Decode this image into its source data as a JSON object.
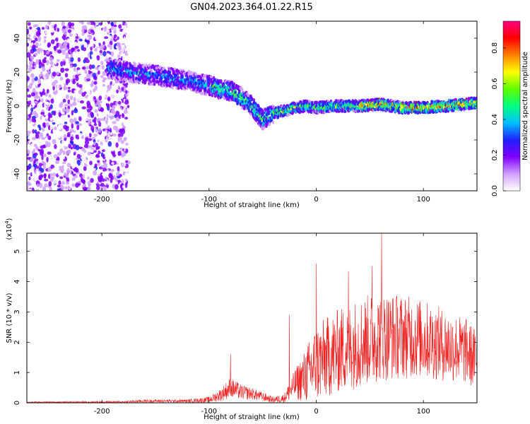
{
  "title": "GN04.2023.364.01.22.R15",
  "chart_data": [
    {
      "type": "heatmap",
      "xlabel": "Height of straight line (km)",
      "ylabel": "Frequency (Hz)",
      "xlim": [
        -270,
        150
      ],
      "ylim": [
        -50,
        50
      ],
      "x_ticks": [
        -200,
        -100,
        0,
        100
      ],
      "x_tick_labels": [
        "-200",
        "-100",
        "0",
        "100"
      ],
      "y_ticks": [
        -40,
        -20,
        0,
        20,
        40
      ],
      "y_tick_labels": [
        "-40",
        "-20",
        "0",
        "20",
        "40"
      ],
      "colorbar": {
        "label": "Normalized spectral amplitude",
        "range": [
          0,
          0.95
        ],
        "ticks": [
          0,
          0.2,
          0.4,
          0.6,
          0.8
        ],
        "tick_labels": [
          "0.0",
          "0.2",
          "0.4",
          "0.6",
          "0.8"
        ],
        "colors": [
          "#ffffff",
          "#d0a0ff",
          "#8000ff",
          "#2020ff",
          "#00c0ff",
          "#00ff80",
          "#60ff00",
          "#ffff00",
          "#ff8000",
          "#ff0000",
          "#ff0080"
        ]
      },
      "ridge": {
        "x": [
          -190,
          -175,
          -160,
          -140,
          -120,
          -100,
          -90,
          -80,
          -70,
          -60,
          -50,
          -40,
          -30,
          -20,
          -10,
          0,
          20,
          40,
          60,
          80,
          100,
          120,
          140,
          150
        ],
        "frequency": [
          22,
          20,
          19,
          17,
          15,
          12,
          10,
          9,
          5,
          0,
          -8,
          -4,
          -3,
          -1,
          0,
          -1,
          0,
          0,
          1,
          -1,
          -1,
          0,
          1,
          2
        ]
      },
      "noise_region_x": [
        -270,
        -175
      ]
    },
    {
      "type": "line",
      "xlabel": "Height of straight line (km)",
      "ylabel": "SNR (10 * v/v)",
      "y_multiplier_label": "(x10",
      "y_multiplier_exp": "4",
      "y_multiplier_close": ")",
      "xlim": [
        -270,
        150
      ],
      "ylim": [
        0,
        5.6
      ],
      "x_ticks": [
        -200,
        -100,
        0,
        100
      ],
      "x_tick_labels": [
        "-200",
        "-100",
        "0",
        "100"
      ],
      "y_ticks": [
        0,
        1,
        2,
        3,
        4,
        5
      ],
      "y_tick_labels": [
        "0",
        "1",
        "2",
        "3",
        "4",
        "5"
      ],
      "color": "#ee2222",
      "envelope": {
        "x": [
          -270,
          -180,
          -160,
          -120,
          -100,
          -90,
          -80,
          -70,
          -60,
          -50,
          -40,
          -30,
          -20,
          -10,
          0,
          20,
          40,
          60,
          80,
          100,
          120,
          140,
          150
        ],
        "mean": [
          0.02,
          0.03,
          0.06,
          0.06,
          0.1,
          0.25,
          0.5,
          0.35,
          0.3,
          0.2,
          0.1,
          0.15,
          0.6,
          0.9,
          1.3,
          1.7,
          2.0,
          2.2,
          2.2,
          2.1,
          1.9,
          1.7,
          1.4
        ],
        "spread": [
          0.02,
          0.03,
          0.05,
          0.05,
          0.1,
          0.2,
          0.35,
          0.25,
          0.2,
          0.15,
          0.1,
          0.15,
          0.5,
          0.9,
          1.3,
          1.4,
          1.5,
          1.5,
          1.4,
          1.3,
          1.2,
          1.1,
          1.0
        ]
      },
      "peaks": [
        {
          "x": -80,
          "y": 1.6
        },
        {
          "x": -25,
          "y": 2.9
        },
        {
          "x": 0,
          "y": 4.6
        },
        {
          "x": 30,
          "y": 4.35
        },
        {
          "x": 52,
          "y": 4.5
        },
        {
          "x": 61,
          "y": 5.6
        }
      ]
    }
  ]
}
